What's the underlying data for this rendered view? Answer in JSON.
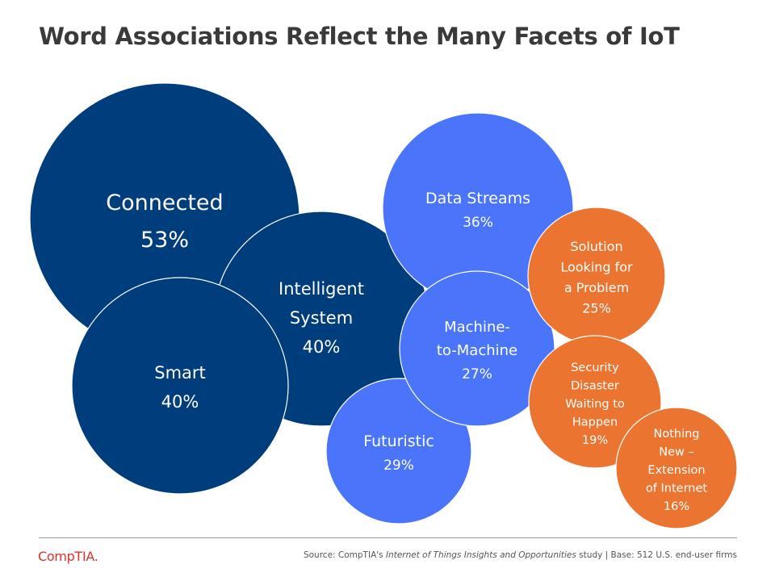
{
  "title": "Word Associations Reflect the Many Facets of IoT",
  "colors": {
    "dark": "#003d7c",
    "blue": "#4a75fa",
    "orange": "#ec7431",
    "title": "#3a3a3a"
  },
  "chart_data": {
    "type": "bubble",
    "title": "Word Associations Reflect the Many Facets of IoT",
    "unit": "%",
    "bubbles": [
      {
        "label": "Connected",
        "lines": [
          "Connected"
        ],
        "value": 53,
        "value_label": "53%",
        "color": "dark"
      },
      {
        "label": "Intelligent System",
        "lines": [
          "Intelligent",
          "System"
        ],
        "value": 40,
        "value_label": "40%",
        "color": "dark"
      },
      {
        "label": "Smart",
        "lines": [
          "Smart"
        ],
        "value": 40,
        "value_label": "40%",
        "color": "dark"
      },
      {
        "label": "Data Streams",
        "lines": [
          "Data Streams"
        ],
        "value": 36,
        "value_label": "36%",
        "color": "blue"
      },
      {
        "label": "Futuristic",
        "lines": [
          "Futuristic"
        ],
        "value": 29,
        "value_label": "29%",
        "color": "blue"
      },
      {
        "label": "Machine-to-Machine",
        "lines": [
          "Machine-",
          "to-Machine"
        ],
        "value": 27,
        "value_label": "27%",
        "color": "blue"
      },
      {
        "label": "Solution Looking for a Problem",
        "lines": [
          "Solution",
          "Looking for",
          "a Problem"
        ],
        "value": 25,
        "value_label": "25%",
        "color": "orange"
      },
      {
        "label": "Security Disaster Waiting to Happen",
        "lines": [
          "Security",
          "Disaster",
          "Waiting to",
          "Happen"
        ],
        "value": 19,
        "value_label": "19%",
        "color": "orange"
      },
      {
        "label": "Nothing New – Extension of Internet",
        "lines": [
          "Nothing",
          "New –",
          "Extension",
          "of Internet"
        ],
        "value": 16,
        "value_label": "16%",
        "color": "orange"
      }
    ]
  },
  "footer": {
    "source_prefix": "Source: CompTIA's ",
    "source_study": "Internet of Things Insights and Opportunities",
    "source_suffix": " study | Base: 512 U.S. end-user firms",
    "logo": "CompTIA."
  }
}
